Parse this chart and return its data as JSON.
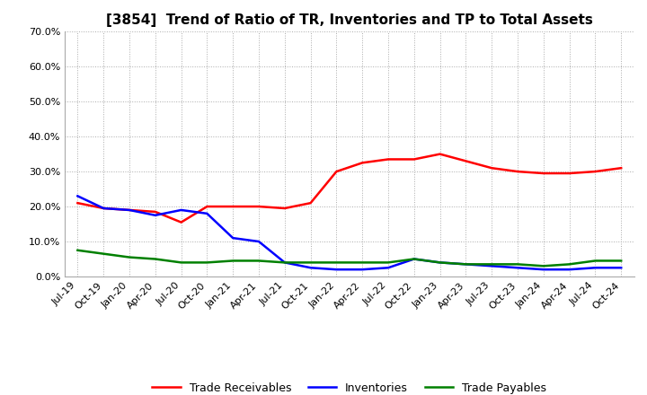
{
  "title": "[3854]  Trend of Ratio of TR, Inventories and TP to Total Assets",
  "x_labels": [
    "Jul-19",
    "Oct-19",
    "Jan-20",
    "Apr-20",
    "Jul-20",
    "Oct-20",
    "Jan-21",
    "Apr-21",
    "Jul-21",
    "Oct-21",
    "Jan-22",
    "Apr-22",
    "Jul-22",
    "Oct-22",
    "Jan-23",
    "Apr-23",
    "Jul-23",
    "Oct-23",
    "Jan-24",
    "Apr-24",
    "Jul-24",
    "Oct-24"
  ],
  "trade_receivables": [
    0.21,
    0.195,
    0.19,
    0.185,
    0.155,
    0.2,
    0.2,
    0.2,
    0.195,
    0.21,
    0.3,
    0.325,
    0.335,
    0.335,
    0.35,
    0.33,
    0.31,
    0.3,
    0.295,
    0.295,
    0.3,
    0.31
  ],
  "inventories": [
    0.23,
    0.195,
    0.19,
    0.175,
    0.19,
    0.18,
    0.11,
    0.1,
    0.04,
    0.025,
    0.02,
    0.02,
    0.025,
    0.05,
    0.04,
    0.035,
    0.03,
    0.025,
    0.02,
    0.02,
    0.025,
    0.025
  ],
  "trade_payables": [
    0.075,
    0.065,
    0.055,
    0.05,
    0.04,
    0.04,
    0.045,
    0.045,
    0.04,
    0.04,
    0.04,
    0.04,
    0.04,
    0.05,
    0.04,
    0.035,
    0.035,
    0.035,
    0.03,
    0.035,
    0.045,
    0.045
  ],
  "tr_color": "#FF0000",
  "inv_color": "#0000FF",
  "tp_color": "#008000",
  "ylim": [
    0.0,
    0.7
  ],
  "yticks": [
    0.0,
    0.1,
    0.2,
    0.3,
    0.4,
    0.5,
    0.6,
    0.7
  ],
  "background_color": "#FFFFFF",
  "grid_color": "#AAAAAA",
  "line_width": 1.8,
  "title_fontsize": 11,
  "tick_fontsize": 8,
  "legend_fontsize": 9
}
